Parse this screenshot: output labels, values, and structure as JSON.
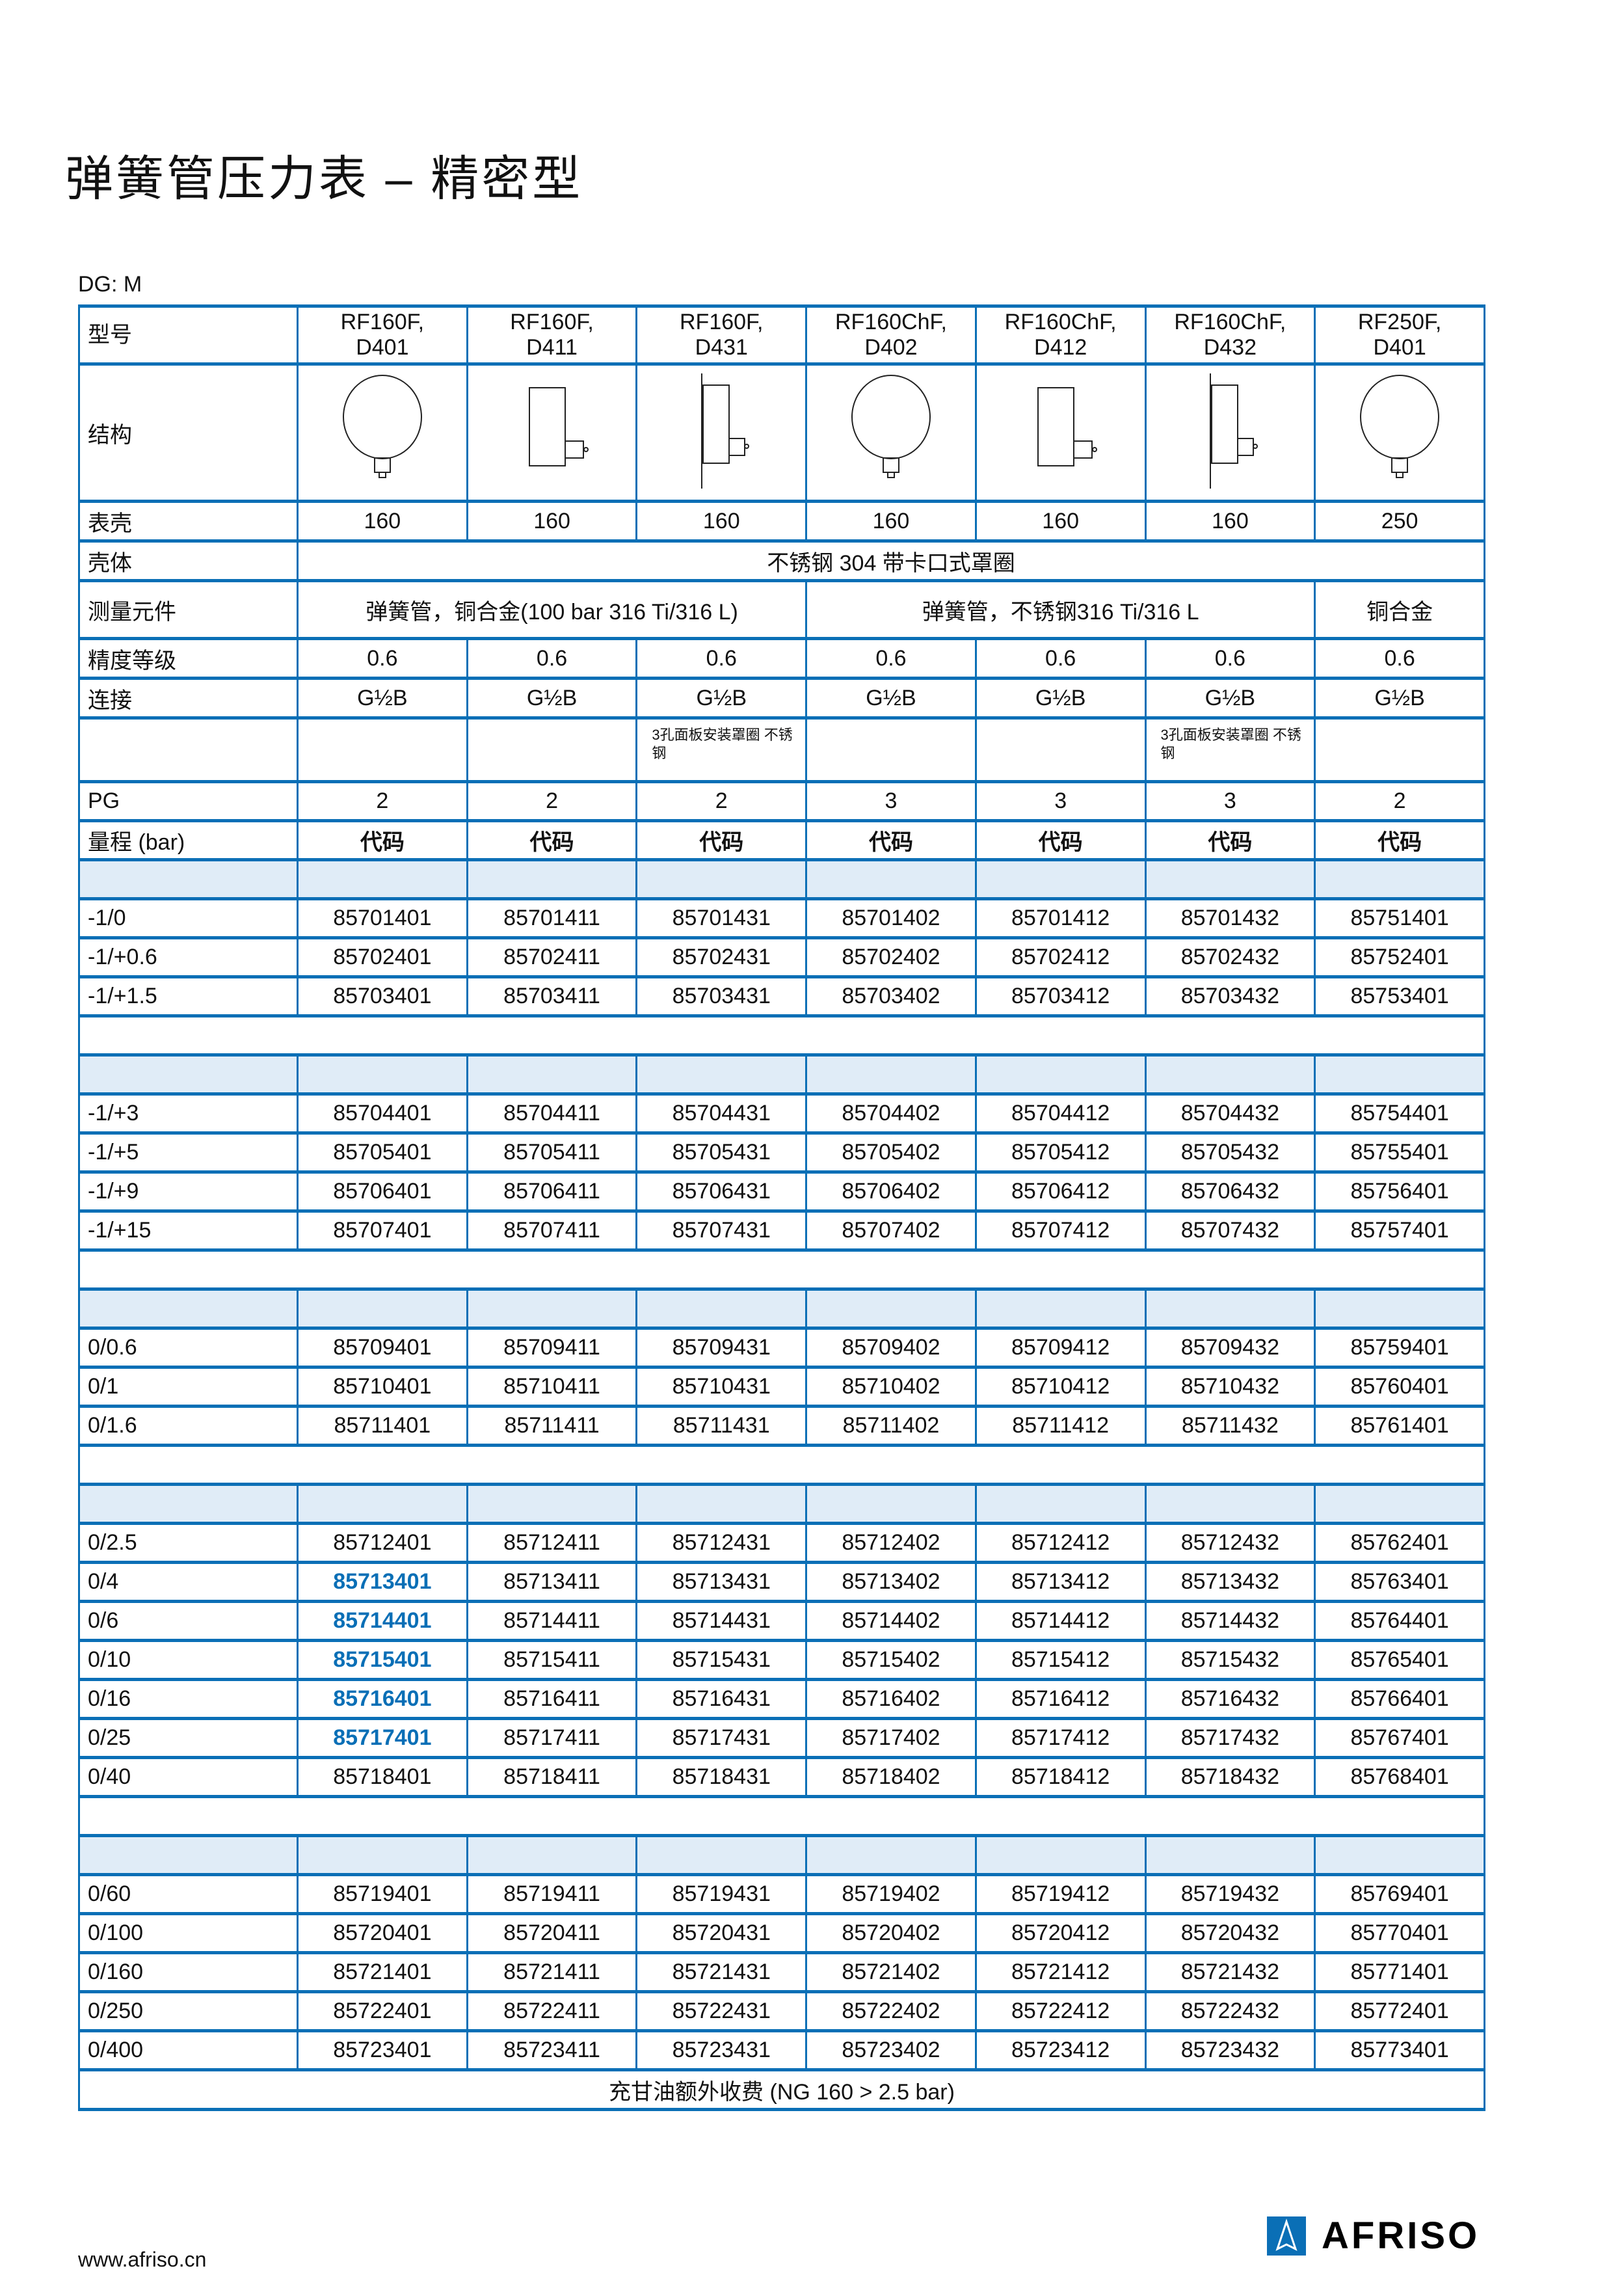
{
  "title": "弹簧管压力表 – 精密型",
  "dg_label": "DG: M",
  "colors": {
    "line": "#0a6fb6",
    "band": "#e0ecf7",
    "highlight": "#0a6fb6"
  },
  "header": {
    "model_label": "型号",
    "structure_label": "结构",
    "case_size_label": "表壳",
    "housing_label": "壳体",
    "element_label": "测量元件",
    "accuracy_label": "精度等级",
    "connection_label": "连接",
    "pg_label": "PG",
    "range_label": "量程 (bar)"
  },
  "models": [
    {
      "name": "RF160F,",
      "code": "D401",
      "drawing": "round",
      "case": "160",
      "accuracy": "0.6",
      "connection": "G½B",
      "note": "",
      "pg": "2",
      "code_label": "代码"
    },
    {
      "name": "RF160F,",
      "code": "D411",
      "drawing": "box",
      "case": "160",
      "accuracy": "0.6",
      "connection": "G½B",
      "note": "",
      "pg": "2",
      "code_label": "代码"
    },
    {
      "name": "RF160F,",
      "code": "D431",
      "drawing": "panel",
      "case": "160",
      "accuracy": "0.6",
      "connection": "G½B",
      "note": "3孔面板安装罩圈 不锈钢",
      "pg": "2",
      "code_label": "代码"
    },
    {
      "name": "RF160ChF,",
      "code": "D402",
      "drawing": "round",
      "case": "160",
      "accuracy": "0.6",
      "connection": "G½B",
      "note": "",
      "pg": "3",
      "code_label": "代码"
    },
    {
      "name": "RF160ChF,",
      "code": "D412",
      "drawing": "box",
      "case": "160",
      "accuracy": "0.6",
      "connection": "G½B",
      "note": "",
      "pg": "3",
      "code_label": "代码"
    },
    {
      "name": "RF160ChF,",
      "code": "D432",
      "drawing": "panel",
      "case": "160",
      "accuracy": "0.6",
      "connection": "G½B",
      "note": "3孔面板安装罩圈 不锈钢",
      "pg": "3",
      "code_label": "代码"
    },
    {
      "name": "RF250F,",
      "code": "D401",
      "drawing": "round",
      "case": "250",
      "accuracy": "0.6",
      "connection": "G½B",
      "note": "",
      "pg": "2",
      "code_label": "代码"
    }
  ],
  "housing": "不锈钢 304  带卡口式罩圈",
  "elements": [
    {
      "text": "弹簧管，铜合金(100 bar 316 Ti/316 L)",
      "span": 3
    },
    {
      "text": "弹簧管，不锈钢316 Ti/316 L",
      "span": 3
    },
    {
      "text": "铜合金",
      "span": 1
    }
  ],
  "groups": [
    {
      "rows": [
        {
          "range": "-1/0",
          "codes": [
            "85701401",
            "85701411",
            "85701431",
            "85701402",
            "85701412",
            "85701432",
            "85751401"
          ]
        },
        {
          "range": "-1/+0.6",
          "codes": [
            "85702401",
            "85702411",
            "85702431",
            "85702402",
            "85702412",
            "85702432",
            "85752401"
          ]
        },
        {
          "range": "-1/+1.5",
          "codes": [
            "85703401",
            "85703411",
            "85703431",
            "85703402",
            "85703412",
            "85703432",
            "85753401"
          ]
        }
      ]
    },
    {
      "rows": [
        {
          "range": "-1/+3",
          "codes": [
            "85704401",
            "85704411",
            "85704431",
            "85704402",
            "85704412",
            "85704432",
            "85754401"
          ]
        },
        {
          "range": "-1/+5",
          "codes": [
            "85705401",
            "85705411",
            "85705431",
            "85705402",
            "85705412",
            "85705432",
            "85755401"
          ]
        },
        {
          "range": "-1/+9",
          "codes": [
            "85706401",
            "85706411",
            "85706431",
            "85706402",
            "85706412",
            "85706432",
            "85756401"
          ]
        },
        {
          "range": "-1/+15",
          "codes": [
            "85707401",
            "85707411",
            "85707431",
            "85707402",
            "85707412",
            "85707432",
            "85757401"
          ]
        }
      ]
    },
    {
      "rows": [
        {
          "range": "0/0.6",
          "codes": [
            "85709401",
            "85709411",
            "85709431",
            "85709402",
            "85709412",
            "85709432",
            "85759401"
          ]
        },
        {
          "range": "0/1",
          "codes": [
            "85710401",
            "85710411",
            "85710431",
            "85710402",
            "85710412",
            "85710432",
            "85760401"
          ]
        },
        {
          "range": "0/1.6",
          "codes": [
            "85711401",
            "85711411",
            "85711431",
            "85711402",
            "85711412",
            "85711432",
            "85761401"
          ]
        }
      ]
    },
    {
      "rows": [
        {
          "range": "0/2.5",
          "codes": [
            "85712401",
            "85712411",
            "85712431",
            "85712402",
            "85712412",
            "85712432",
            "85762401"
          ]
        },
        {
          "range": "0/4",
          "highlight_first": true,
          "codes": [
            "85713401",
            "85713411",
            "85713431",
            "85713402",
            "85713412",
            "85713432",
            "85763401"
          ]
        },
        {
          "range": "0/6",
          "highlight_first": true,
          "codes": [
            "85714401",
            "85714411",
            "85714431",
            "85714402",
            "85714412",
            "85714432",
            "85764401"
          ]
        },
        {
          "range": "0/10",
          "highlight_first": true,
          "codes": [
            "85715401",
            "85715411",
            "85715431",
            "85715402",
            "85715412",
            "85715432",
            "85765401"
          ]
        },
        {
          "range": "0/16",
          "highlight_first": true,
          "codes": [
            "85716401",
            "85716411",
            "85716431",
            "85716402",
            "85716412",
            "85716432",
            "85766401"
          ]
        },
        {
          "range": "0/25",
          "highlight_first": true,
          "codes": [
            "85717401",
            "85717411",
            "85717431",
            "85717402",
            "85717412",
            "85717432",
            "85767401"
          ]
        },
        {
          "range": "0/40",
          "codes": [
            "85718401",
            "85718411",
            "85718431",
            "85718402",
            "85718412",
            "85718432",
            "85768401"
          ]
        }
      ]
    },
    {
      "rows": [
        {
          "range": "0/60",
          "codes": [
            "85719401",
            "85719411",
            "85719431",
            "85719402",
            "85719412",
            "85719432",
            "85769401"
          ]
        },
        {
          "range": "0/100",
          "codes": [
            "85720401",
            "85720411",
            "85720431",
            "85720402",
            "85720412",
            "85720432",
            "85770401"
          ]
        },
        {
          "range": "0/160",
          "codes": [
            "85721401",
            "85721411",
            "85721431",
            "85721402",
            "85721412",
            "85721432",
            "85771401"
          ]
        },
        {
          "range": "0/250",
          "codes": [
            "85722401",
            "85722411",
            "85722431",
            "85722402",
            "85722412",
            "85722432",
            "85772401"
          ]
        },
        {
          "range": "0/400",
          "codes": [
            "85723401",
            "85723411",
            "85723431",
            "85723402",
            "85723412",
            "85723432",
            "85773401"
          ]
        }
      ]
    }
  ],
  "footer_note": "充甘油额外收费 (NG 160 > 2.5 bar)",
  "footer": {
    "url": "www.afriso.cn",
    "logo_text": "AFRISO"
  }
}
